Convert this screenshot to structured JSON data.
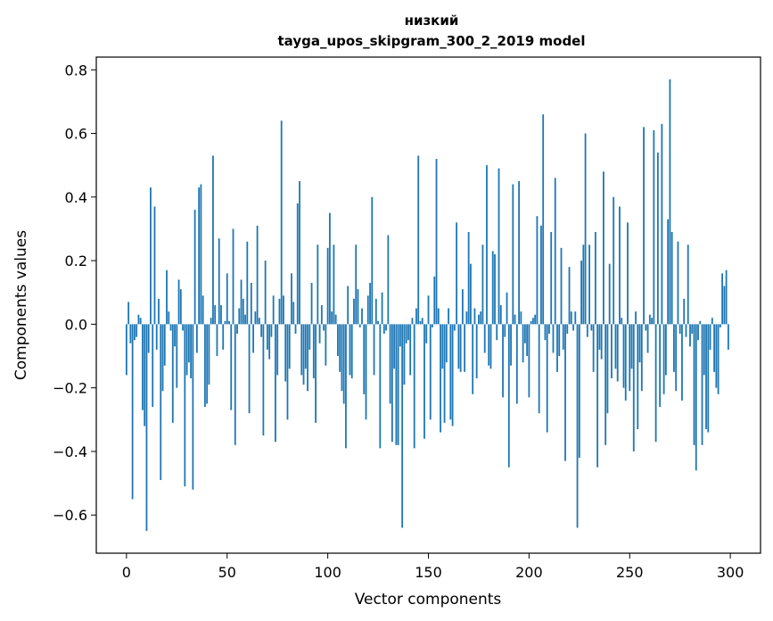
{
  "chart_data": {
    "type": "bar",
    "title_line1": "низкий",
    "title_line2": "tayga_upos_skipgram_300_2_2019 model",
    "xlabel": "Vector components",
    "ylabel": "Components values",
    "xlim": [
      -15,
      315
    ],
    "ylim": [
      -0.72,
      0.84
    ],
    "xticks": [
      0,
      50,
      100,
      150,
      200,
      250,
      300
    ],
    "xtick_labels": [
      "0",
      "50",
      "100",
      "150",
      "200",
      "250",
      "300"
    ],
    "yticks": [
      -0.6,
      -0.4,
      -0.2,
      0.0,
      0.2,
      0.4,
      0.6,
      0.8
    ],
    "ytick_labels": [
      "−0.6",
      "−0.4",
      "−0.2",
      "0.0",
      "0.2",
      "0.4",
      "0.6",
      "0.8"
    ],
    "bar_color": "#1f77b4",
    "values": [
      -0.16,
      0.07,
      -0.06,
      -0.55,
      -0.05,
      -0.04,
      0.03,
      0.02,
      -0.27,
      -0.32,
      -0.65,
      -0.09,
      0.43,
      -0.26,
      0.37,
      -0.08,
      0.08,
      -0.49,
      -0.21,
      -0.13,
      0.17,
      0.04,
      -0.02,
      -0.31,
      -0.07,
      -0.2,
      0.14,
      0.11,
      -0.02,
      -0.51,
      -0.16,
      -0.12,
      -0.17,
      -0.52,
      0.36,
      -0.09,
      0.43,
      0.44,
      0.09,
      -0.26,
      -0.25,
      -0.19,
      0.02,
      0.53,
      0.06,
      -0.1,
      0.27,
      0.06,
      -0.08,
      0.01,
      0.16,
      0.01,
      -0.27,
      0.3,
      -0.38,
      -0.03,
      0.05,
      0.14,
      0.08,
      0.03,
      0.26,
      -0.28,
      0.13,
      -0.09,
      0.04,
      0.31,
      0.02,
      -0.04,
      -0.35,
      0.2,
      -0.08,
      -0.11,
      -0.04,
      0.09,
      -0.37,
      -0.16,
      0.08,
      0.64,
      0.09,
      -0.18,
      -0.3,
      -0.14,
      0.16,
      0.07,
      -0.03,
      0.38,
      0.45,
      -0.16,
      -0.19,
      -0.14,
      -0.21,
      -0.08,
      0.13,
      -0.17,
      -0.31,
      0.25,
      -0.06,
      0.06,
      -0.02,
      -0.13,
      0.24,
      0.35,
      0.04,
      0.25,
      0.03,
      -0.1,
      -0.15,
      -0.21,
      -0.25,
      -0.39,
      0.12,
      -0.16,
      -0.17,
      0.08,
      0.25,
      0.11,
      -0.01,
      0.05,
      -0.22,
      -0.3,
      0.09,
      0.13,
      0.4,
      -0.16,
      0.08,
      0.01,
      -0.39,
      0.1,
      -0.03,
      -0.02,
      0.28,
      -0.25,
      -0.37,
      -0.14,
      -0.38,
      -0.38,
      -0.07,
      -0.64,
      -0.19,
      -0.06,
      -0.05,
      -0.16,
      0.02,
      -0.39,
      0.05,
      0.53,
      0.01,
      0.02,
      -0.36,
      -0.06,
      0.09,
      -0.3,
      -0.01,
      0.15,
      0.52,
      0.05,
      -0.34,
      -0.14,
      -0.31,
      -0.12,
      0.05,
      -0.3,
      -0.32,
      -0.02,
      0.32,
      -0.14,
      -0.15,
      0.11,
      -0.15,
      0.04,
      0.29,
      0.19,
      -0.22,
      0.05,
      -0.17,
      0.03,
      0.04,
      0.25,
      -0.09,
      0.5,
      -0.13,
      -0.14,
      0.23,
      0.22,
      -0.05,
      0.49,
      0.06,
      -0.23,
      -0.04,
      0.1,
      -0.45,
      -0.13,
      0.44,
      0.03,
      -0.25,
      0.45,
      0.04,
      -0.12,
      -0.06,
      -0.1,
      -0.23,
      0.01,
      0.02,
      0.03,
      0.34,
      -0.28,
      0.31,
      0.66,
      -0.05,
      -0.34,
      -0.03,
      0.29,
      -0.09,
      0.46,
      -0.15,
      -0.1,
      0.24,
      -0.08,
      -0.43,
      -0.03,
      0.18,
      0.04,
      -0.02,
      0.04,
      -0.64,
      -0.42,
      0.2,
      0.25,
      0.6,
      -0.04,
      0.25,
      -0.02,
      -0.15,
      0.29,
      -0.45,
      -0.08,
      -0.11,
      0.48,
      -0.38,
      -0.28,
      0.19,
      -0.17,
      0.4,
      -0.14,
      -0.18,
      0.37,
      0.02,
      -0.2,
      -0.24,
      0.32,
      -0.21,
      -0.14,
      -0.4,
      0.04,
      -0.33,
      -0.12,
      -0.21,
      0.62,
      -0.02,
      -0.09,
      0.03,
      0.02,
      0.61,
      -0.37,
      0.54,
      -0.26,
      0.63,
      -0.22,
      -0.16,
      0.33,
      0.77,
      0.29,
      -0.15,
      -0.21,
      0.26,
      -0.03,
      -0.24,
      0.08,
      -0.04,
      0.25,
      -0.07,
      -0.03,
      -0.38,
      -0.46,
      -0.05,
      0.01,
      -0.38,
      -0.16,
      -0.33,
      -0.34,
      -0.08,
      0.02,
      -0.15,
      -0.2,
      -0.22,
      -0.01,
      0.16,
      0.12,
      0.17,
      -0.08
    ]
  }
}
